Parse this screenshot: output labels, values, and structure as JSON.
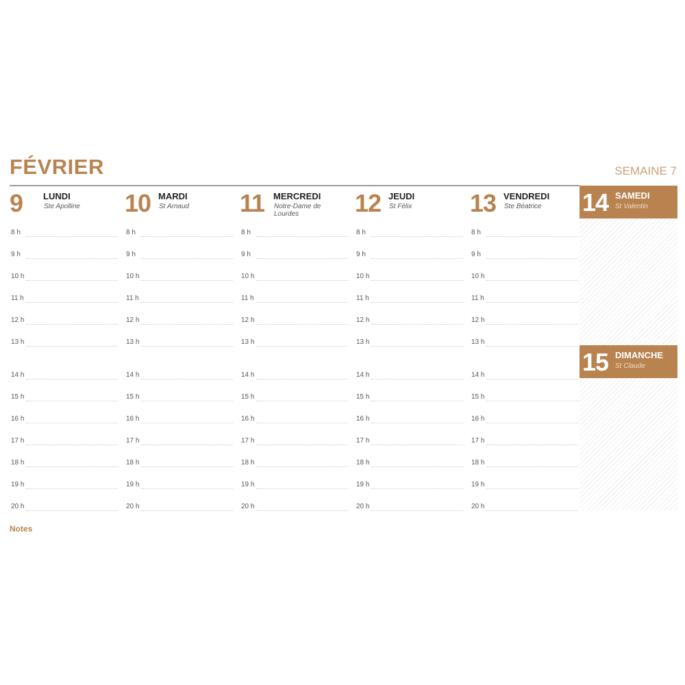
{
  "month": "FÉVRIER",
  "week": "SEMAINE 7",
  "days": [
    {
      "num": "9",
      "name": "LUNDI",
      "saint": "Ste Apolline"
    },
    {
      "num": "10",
      "name": "MARDI",
      "saint": "St Arnaud"
    },
    {
      "num": "11",
      "name": "MERCREDI",
      "saint": "Notre-Dame de Lourdes"
    },
    {
      "num": "12",
      "name": "JEUDI",
      "saint": "St Félix"
    },
    {
      "num": "13",
      "name": "VENDREDI",
      "saint": "Ste Béatrice"
    }
  ],
  "weekend": [
    {
      "num": "14",
      "name": "SAMEDI",
      "saint": "St Valentin"
    },
    {
      "num": "15",
      "name": "DIMANCHE",
      "saint": "St Claude"
    }
  ],
  "hours": [
    "8 h",
    "9 h",
    "10 h",
    "11 h",
    "12 h",
    "13 h",
    "14 h",
    "15 h",
    "16 h",
    "17 h",
    "18 h",
    "19 h",
    "20 h"
  ],
  "notes": "Notes",
  "colors": {
    "accent": "#b8834f"
  }
}
